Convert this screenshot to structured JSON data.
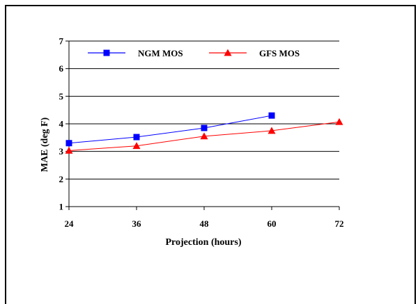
{
  "chart_data": {
    "type": "line",
    "xlabel": "Projection (hours)",
    "ylabel": "MAE (deg F)",
    "x": [
      24,
      36,
      48,
      60,
      72
    ],
    "ylim": [
      1,
      7
    ],
    "yticks": [
      1,
      2,
      3,
      4,
      5,
      6,
      7
    ],
    "grid": "horizontal",
    "legend_position": "top",
    "series": [
      {
        "name": "NGM MOS",
        "color": "#0000ff",
        "marker": "square",
        "values": [
          3.3,
          3.52,
          3.85,
          4.3,
          null
        ]
      },
      {
        "name": "GFS MOS",
        "color": "#ff0000",
        "marker": "triangle",
        "values": [
          3.03,
          3.2,
          3.55,
          3.75,
          4.07
        ]
      }
    ]
  }
}
